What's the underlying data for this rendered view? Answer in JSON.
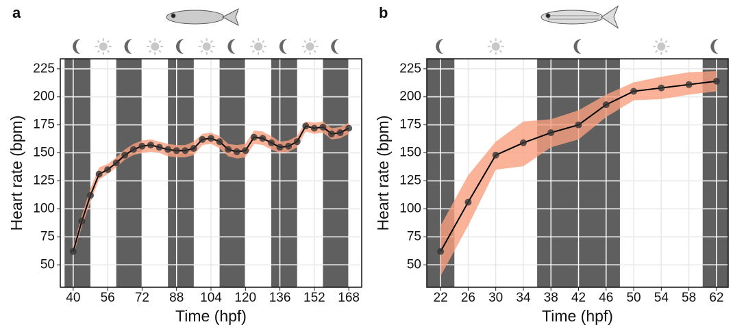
{
  "chart_data": [
    {
      "type": "line",
      "panel": "a",
      "x_label": "Time (hpf)",
      "y_label": "Heart rate (bpm)",
      "x": [
        40,
        44,
        48,
        52,
        56,
        60,
        64,
        68,
        72,
        76,
        80,
        84,
        88,
        92,
        96,
        100,
        104,
        108,
        112,
        116,
        120,
        124,
        128,
        132,
        136,
        140,
        144,
        148,
        152,
        156,
        160,
        164,
        168
      ],
      "values": [
        62,
        89,
        112,
        131,
        135,
        141,
        148,
        153,
        156,
        157,
        155,
        153,
        152,
        152,
        154,
        162,
        163,
        160,
        153,
        151,
        152,
        164,
        163,
        159,
        155,
        156,
        160,
        174,
        172,
        173,
        167,
        168,
        172
      ],
      "lower": [
        58,
        84,
        106,
        126,
        131,
        137,
        144,
        148,
        150,
        151,
        150,
        147,
        146,
        146,
        148,
        157,
        158,
        154,
        147,
        145,
        146,
        158,
        157,
        153,
        150,
        151,
        155,
        169,
        167,
        168,
        162,
        163,
        167
      ],
      "upper": [
        66,
        94,
        118,
        137,
        140,
        146,
        153,
        158,
        161,
        162,
        160,
        158,
        157,
        157,
        160,
        167,
        168,
        165,
        158,
        157,
        158,
        170,
        169,
        165,
        160,
        161,
        165,
        178,
        177,
        178,
        172,
        173,
        177
      ],
      "night_intervals": [
        [
          36,
          48
        ],
        [
          60,
          72
        ],
        [
          84,
          96
        ],
        [
          108,
          120
        ],
        [
          132,
          144
        ],
        [
          156,
          168
        ]
      ],
      "xlim": [
        34,
        174
      ],
      "ylim": [
        30,
        234
      ],
      "xticks": [
        40,
        56,
        72,
        88,
        104,
        120,
        136,
        152,
        168
      ],
      "yticks": [
        50,
        75,
        100,
        125,
        150,
        175,
        200,
        225
      ],
      "grid": true,
      "line_color": "#000000",
      "band_color": "#f9a07f",
      "shade_color": "#5a5a5a"
    },
    {
      "type": "line",
      "panel": "b",
      "x_label": "Time (hpf)",
      "y_label": "Heart rate (bpm)",
      "x": [
        22,
        26,
        30,
        34,
        38,
        42,
        46,
        50,
        54,
        58,
        62
      ],
      "values": [
        62,
        106,
        148,
        159,
        168,
        175,
        193,
        205,
        208,
        211,
        214
      ],
      "lower": [
        40,
        85,
        135,
        138,
        155,
        162,
        182,
        197,
        198,
        202,
        205
      ],
      "upper": [
        85,
        130,
        160,
        178,
        180,
        188,
        202,
        213,
        218,
        222,
        223
      ],
      "night_intervals": [
        [
          20,
          24
        ],
        [
          36,
          48
        ],
        [
          60,
          64
        ]
      ],
      "xlim": [
        20,
        63.7
      ],
      "ylim": [
        30,
        234
      ],
      "xticks": [
        22,
        26,
        30,
        34,
        38,
        42,
        46,
        50,
        54,
        58,
        62
      ],
      "yticks": [
        50,
        75,
        100,
        125,
        150,
        175,
        200,
        225
      ],
      "grid": true,
      "line_color": "#000000",
      "band_color": "#f9a07f",
      "shade_color": "#5a5a5a"
    }
  ]
}
